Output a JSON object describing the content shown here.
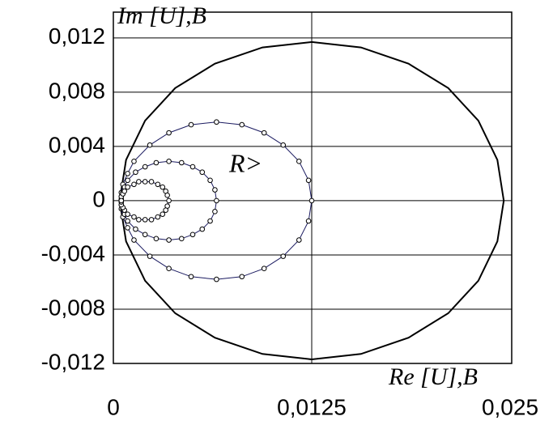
{
  "chart_data": {
    "type": "line",
    "x_label": "Re [U],B",
    "y_label": "Im [U],B",
    "annotation": "R>",
    "xlim": [
      0,
      0.025
    ],
    "ylim": [
      -0.012,
      0.0139
    ],
    "xticks": [
      0,
      {
        "value": 0.0125,
        "label": "0,0125"
      },
      {
        "value": 0.025,
        "label": "0,025"
      }
    ],
    "yticks": [
      {
        "value": 0.012,
        "label": "0,012"
      },
      {
        "value": 0.008,
        "label": "0,008"
      },
      {
        "value": 0.004,
        "label": "0,004"
      },
      0,
      {
        "value": -0.004,
        "label": "-0,004"
      },
      {
        "value": -0.008,
        "label": "-0,008"
      },
      {
        "value": -0.012,
        "label": "-0,012"
      }
    ],
    "grid": true,
    "series": [
      {
        "color": "#000000",
        "markers": false,
        "x": [
          0.0246,
          0.0242,
          0.023,
          0.0211,
          0.0186,
          0.0156,
          0.0125,
          0.0094,
          0.0064,
          0.0039,
          0.002,
          0.0008,
          0.0004,
          0.0008,
          0.002,
          0.0039,
          0.0064,
          0.0094,
          0.0125,
          0.0156,
          0.0186,
          0.0211,
          0.023,
          0.0242,
          0.0246
        ],
        "values": [
          0,
          0.003,
          0.0059,
          0.0083,
          0.0101,
          0.0113,
          0.0117,
          0.0113,
          0.0101,
          0.0083,
          0.0059,
          0.003,
          0,
          -0.003,
          -0.0059,
          -0.0083,
          -0.0101,
          -0.0113,
          -0.0117,
          -0.0113,
          -0.0101,
          -0.0083,
          -0.0059,
          -0.003,
          0
        ]
      },
      {
        "color": "#1a1a60",
        "markers": true,
        "x": [
          0.0005,
          0.0005,
          0.0006,
          0.0009,
          0.0013,
          0.0023,
          0.0035,
          0.0049,
          0.0065,
          0.0081,
          0.0095,
          0.0107,
          0.0117,
          0.0123,
          0.0125,
          0.0123,
          0.0117,
          0.0107,
          0.0095,
          0.0081,
          0.0065,
          0.0049,
          0.0035,
          0.0023,
          0.0013,
          0.0009,
          0.0006,
          0.0005,
          0.0005
        ],
        "values": [
          0,
          0.0006,
          0.0012,
          0.002,
          0.0029,
          0.0041,
          0.005,
          0.0056,
          0.0058,
          0.0056,
          0.005,
          0.0041,
          0.0029,
          0.0015,
          0,
          -0.0015,
          -0.0029,
          -0.0041,
          -0.005,
          -0.0056,
          -0.0058,
          -0.0056,
          -0.005,
          -0.0041,
          -0.0029,
          -0.002,
          -0.0012,
          -0.0006,
          0
        ]
      },
      {
        "color": "#1a1a60",
        "markers": true,
        "x": [
          0.0005,
          0.0005,
          0.0006,
          0.0007,
          0.0009,
          0.0014,
          0.002,
          0.0027,
          0.0035,
          0.0043,
          0.005,
          0.0056,
          0.0061,
          0.0064,
          0.0065,
          0.0064,
          0.0061,
          0.0056,
          0.005,
          0.0043,
          0.0035,
          0.0027,
          0.002,
          0.0014,
          0.0009,
          0.0007,
          0.0006,
          0.0005,
          0.0005
        ],
        "values": [
          0,
          0.0003,
          0.0006,
          0.001,
          0.0015,
          0.0021,
          0.0025,
          0.0028,
          0.0029,
          0.0028,
          0.0025,
          0.0021,
          0.0015,
          0.0008,
          0,
          -0.0008,
          -0.0015,
          -0.0021,
          -0.0025,
          -0.0028,
          -0.0029,
          -0.0028,
          -0.0025,
          -0.0021,
          -0.0015,
          -0.001,
          -0.0006,
          -0.0003,
          0
        ]
      },
      {
        "color": "#1a1a60",
        "markers": true,
        "x": [
          0.0005,
          0.0005,
          0.0005,
          0.0006,
          0.0007,
          0.0009,
          0.0013,
          0.0016,
          0.002,
          0.0024,
          0.0028,
          0.0031,
          0.0033,
          0.0034,
          0.0035,
          0.0034,
          0.0033,
          0.0031,
          0.0028,
          0.0024,
          0.002,
          0.0016,
          0.0013,
          0.0009,
          0.0007,
          0.0006,
          0.0005,
          0.0005,
          0.0005
        ],
        "values": [
          0,
          0.0001,
          0.0003,
          0.0005,
          0.0007,
          0.001,
          0.0012,
          0.0014,
          0.0014,
          0.0014,
          0.0012,
          0.001,
          0.0007,
          0.0004,
          0,
          -0.0004,
          -0.0007,
          -0.001,
          -0.0012,
          -0.0014,
          -0.0014,
          -0.0014,
          -0.0012,
          -0.001,
          -0.0007,
          -0.0005,
          -0.0003,
          -0.0001,
          0
        ]
      }
    ]
  }
}
